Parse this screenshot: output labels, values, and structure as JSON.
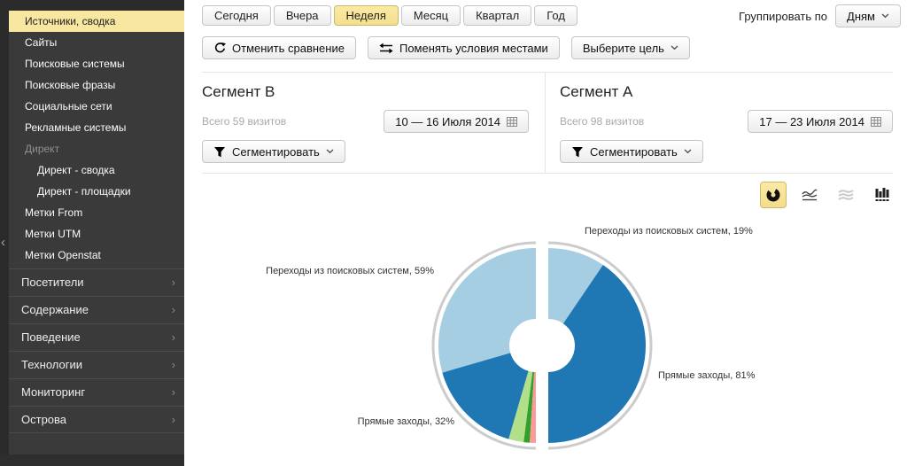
{
  "sidebar": {
    "selected_item": {
      "label": "Источники, сводка"
    },
    "items": [
      {
        "label": "Сайты"
      },
      {
        "label": "Поисковые системы"
      },
      {
        "label": "Поисковые фразы"
      },
      {
        "label": "Социальные сети"
      },
      {
        "label": "Рекламные системы"
      },
      {
        "label": "Директ",
        "muted": true
      },
      {
        "label": "Директ - сводка",
        "indent": true
      },
      {
        "label": "Директ - площадки",
        "indent": true
      },
      {
        "label": "Метки From"
      },
      {
        "label": "Метки UTM"
      },
      {
        "label": "Метки Openstat"
      }
    ],
    "sections": [
      {
        "label": "Посетители"
      },
      {
        "label": "Содержание"
      },
      {
        "label": "Поведение"
      },
      {
        "label": "Технологии"
      },
      {
        "label": "Мониторинг"
      },
      {
        "label": "Острова"
      }
    ]
  },
  "toolbar": {
    "period_tabs": [
      {
        "label": "Сегодня",
        "selected": false
      },
      {
        "label": "Вчера",
        "selected": false
      },
      {
        "label": "Неделя",
        "selected": true
      },
      {
        "label": "Месяц",
        "selected": false
      },
      {
        "label": "Квартал",
        "selected": false
      },
      {
        "label": "Год",
        "selected": false
      }
    ],
    "group_by_label": "Группировать по",
    "group_by_value": "Дням",
    "cancel_compare_label": "Отменить сравнение",
    "swap_conditions_label": "Поменять условия местами",
    "choose_goal_label": "Выберите цель"
  },
  "segments": [
    {
      "title": "Сегмент B",
      "total": "Всего 59 визитов",
      "date_range": "10 — 16 Июля 2014",
      "segment_button": "Сегментировать"
    },
    {
      "title": "Сегмент A",
      "total": "Всего 98 визитов",
      "date_range": "17 — 23 Июля 2014",
      "segment_button": "Сегментировать"
    }
  ],
  "chart_data": {
    "type": "pie",
    "variant": "split-donut-comparison",
    "ring_color": "#cccccc",
    "halves": [
      {
        "segment": "Сегмент B",
        "side": "left",
        "total_visits": 59,
        "slices": [
          {
            "label": "Переходы из поисковых систем",
            "percent": 59,
            "color": "#a6cee3"
          },
          {
            "label": "Прямые заходы",
            "percent": 32,
            "color": "#1f78b4"
          },
          {
            "label": "",
            "percent": 5,
            "color": "#b2df8a"
          },
          {
            "label": "",
            "percent": 2,
            "color": "#33a02c"
          },
          {
            "label": "",
            "percent": 2,
            "color": "#fb9a99"
          }
        ]
      },
      {
        "segment": "Сегмент A",
        "side": "right",
        "total_visits": 98,
        "slices": [
          {
            "label": "Переходы из поисковых систем",
            "percent": 19,
            "color": "#a6cee3"
          },
          {
            "label": "Прямые заходы",
            "percent": 81,
            "color": "#1f78b4"
          }
        ]
      }
    ],
    "callouts": [
      {
        "text": "Переходы из поисковых систем, 59%"
      },
      {
        "text": "Переходы из поисковых систем, 19%"
      },
      {
        "text": "Прямые заходы, 32%"
      },
      {
        "text": "Прямые заходы, 81%"
      }
    ]
  },
  "icons": {
    "sidebar_collapse": "‹",
    "section_chevron": "›",
    "cancel_compare_icon": "refresh-circular-arrow",
    "swap_icon": "swap-arrows",
    "dropdown_icon": "chevron-down",
    "segment_icon": "funnel",
    "date_icon": "calendar-grid",
    "chart_type_icons": [
      "donut-chart",
      "line-chart",
      "stacked-area-chart",
      "bar-chart"
    ]
  },
  "colors": {
    "sidebar_bg": "#3a3a3a",
    "highlight_yellow": "#f8e7a0",
    "pie_light_blue": "#a6cee3",
    "pie_blue": "#1f78b4",
    "pie_light_green": "#b2df8a",
    "pie_green": "#33a02c",
    "pie_pink": "#fb9a99",
    "ring_gray": "#cccccc"
  }
}
